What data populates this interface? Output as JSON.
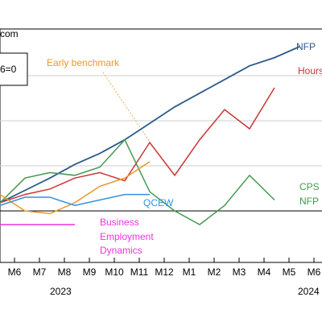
{
  "chart_data": {
    "type": "line",
    "source_fragment": "com",
    "base_label": "6=0",
    "categories": [
      "M6",
      "M7",
      "M8",
      "M9",
      "M10",
      "M11",
      "M12",
      "M1",
      "M2",
      "M3",
      "M4",
      "M5",
      "M6"
    ],
    "years": [
      "2023",
      "2024"
    ],
    "ylim": [
      -10,
      60
    ],
    "baseline": 0,
    "series": [
      {
        "name": "NFP",
        "color": "#2b5a8a",
        "values": [
          3,
          7.5,
          12,
          17,
          21,
          26,
          32,
          38,
          43,
          48,
          53,
          56,
          60
        ]
      },
      {
        "name": "Hours",
        "color": "#cc3333",
        "values": [
          3,
          6,
          8,
          12,
          14,
          11,
          25,
          13,
          26,
          37,
          30,
          45,
          null
        ]
      },
      {
        "name": "CPS NFP",
        "color": "#44994f",
        "values": [
          3,
          12,
          14,
          13,
          16,
          26,
          7,
          0,
          -5,
          2,
          13,
          4,
          null
        ]
      },
      {
        "name": "Early benchmark",
        "color": "#e69a2a",
        "values": [
          6,
          0,
          -1,
          3,
          9,
          12,
          18,
          null,
          null,
          null,
          null,
          null,
          null
        ]
      },
      {
        "name": "QCEW",
        "color": "#3390e0",
        "values": [
          2,
          5,
          5,
          2,
          4,
          6,
          6,
          null,
          null,
          null,
          null,
          null,
          null
        ]
      },
      {
        "name": "Business Employment Dynamics",
        "color": "#ee33dd",
        "values": [
          -5,
          -5,
          -5,
          -5,
          null,
          null,
          null,
          null,
          null,
          null,
          null,
          null,
          null
        ]
      }
    ],
    "labels": {
      "nfp": "NFP",
      "hours": "Hours",
      "cps_line1": "CPS",
      "cps_line2": "NFP",
      "early_benchmark": "Early benchmark",
      "qcew": "QCEW",
      "bed_line1": "Business",
      "bed_line2": "Employment",
      "bed_line3": "Dynamics"
    },
    "colors": {
      "nfp": "#2b5a8a",
      "hours": "#cc3333",
      "cps": "#44994f",
      "early": "#e69a2a",
      "qcew": "#3390e0",
      "bed": "#ee33dd"
    }
  }
}
